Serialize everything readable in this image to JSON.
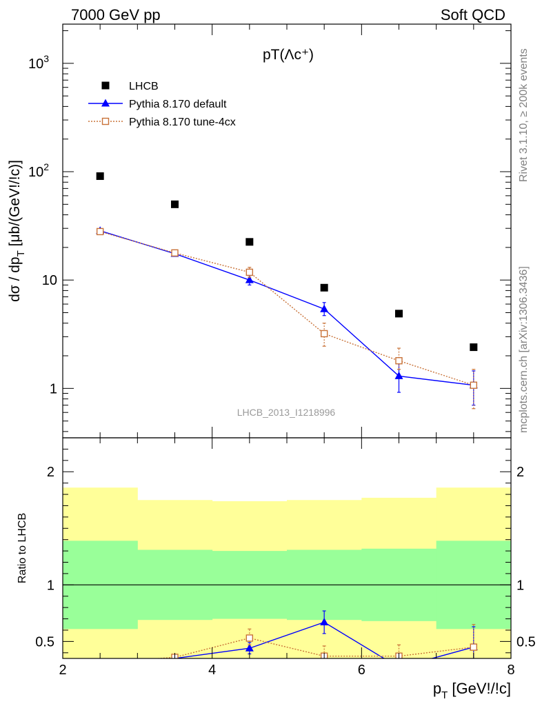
{
  "header": {
    "left": "7000 GeV pp",
    "right": "Soft QCD"
  },
  "side_labels": {
    "rivet": "Rivet 3.1.10, ≥ 200k events",
    "mcplots": "mcplots.cern.ch [arXiv:1306.3436]"
  },
  "chart_data": [
    {
      "panel": "main",
      "type": "scatter",
      "title": "pT(Λc⁺)",
      "watermark": "LHCB_2013_I1218996",
      "ylabel": "dσ / dp_T [μb/(GeV!/!c)]",
      "xlim": [
        2,
        8
      ],
      "ylim": [
        0.35,
        2300
      ],
      "yscale": "log",
      "y_ticklabels": [
        "1",
        "10",
        "10^2",
        "10^3"
      ],
      "x": [
        2.5,
        3.5,
        4.5,
        5.5,
        6.5,
        7.5
      ],
      "legend_position": "top-left",
      "series": [
        {
          "name": "LHCB",
          "color": "#000000",
          "marker": "square",
          "values": [
            91,
            50,
            22.5,
            8.5,
            4.9,
            2.4
          ]
        },
        {
          "name": "Pythia 8.170 default",
          "color": "#0000ff",
          "marker": "triangle",
          "values": [
            28.5,
            17.5,
            10.0,
            5.4,
            1.3,
            1.07
          ],
          "err_low": [
            1.0,
            0.8,
            1.0,
            0.7,
            0.38,
            0.37
          ],
          "err_high": [
            1.0,
            0.8,
            1.0,
            0.8,
            0.45,
            0.38
          ]
        },
        {
          "name": "Pythia 8.170 tune-4cx",
          "color": "#c87137",
          "marker": "open-square",
          "values": [
            28.0,
            17.8,
            11.8,
            3.2,
            1.8,
            1.07
          ],
          "err_low": [
            1.0,
            0.8,
            1.2,
            0.75,
            0.3,
            0.42
          ],
          "err_high": [
            1.0,
            0.8,
            1.3,
            0.8,
            0.55,
            0.43
          ]
        }
      ]
    },
    {
      "panel": "ratio",
      "type": "line",
      "ylabel": "Ratio to LHCB",
      "xlabel": "p_T [GeV!/!c]",
      "xlim": [
        2,
        8
      ],
      "ylim": [
        0.35,
        2.3
      ],
      "x_ticklabels": [
        "2",
        "4",
        "6",
        "8"
      ],
      "y_ticklabels": [
        "0.5",
        "1",
        "2"
      ],
      "bins": [
        [
          2,
          3
        ],
        [
          3,
          4
        ],
        [
          4,
          5
        ],
        [
          5,
          6
        ],
        [
          6,
          7
        ],
        [
          7,
          8
        ]
      ],
      "band_yellow": {
        "low": [
          0.1,
          0.1,
          0.1,
          0.1,
          0.1,
          0.1
        ],
        "high": [
          1.86,
          1.75,
          1.74,
          1.75,
          1.77,
          1.86
        ],
        "color": "#ffff99"
      },
      "band_green": {
        "low": [
          0.61,
          0.69,
          0.7,
          0.69,
          0.68,
          0.61
        ],
        "high": [
          1.39,
          1.31,
          1.3,
          1.31,
          1.32,
          1.39
        ],
        "color": "#99ff99"
      },
      "series": [
        {
          "name": "Pythia 8.170 default",
          "color": "#0000ff",
          "marker": "triangle",
          "x": [
            2.5,
            3.5,
            4.5,
            5.5,
            6.5,
            7.5
          ],
          "values": [
            0.31,
            0.35,
            0.44,
            0.67,
            0.27,
            0.45
          ],
          "err_low": [
            0.02,
            0.02,
            0.05,
            0.1,
            0.08,
            0.17
          ],
          "err_high": [
            0.02,
            0.02,
            0.05,
            0.1,
            0.08,
            0.18
          ]
        },
        {
          "name": "Pythia 8.170 tune-4cx",
          "color": "#c87137",
          "marker": "open-square",
          "x": [
            2.5,
            3.5,
            4.5,
            5.5,
            6.5,
            7.5
          ],
          "values": [
            0.31,
            0.36,
            0.53,
            0.37,
            0.37,
            0.45
          ],
          "err_low": [
            0.02,
            0.02,
            0.06,
            0.09,
            0.06,
            0.18
          ],
          "err_high": [
            0.02,
            0.02,
            0.08,
            0.09,
            0.1,
            0.2
          ]
        }
      ]
    }
  ]
}
